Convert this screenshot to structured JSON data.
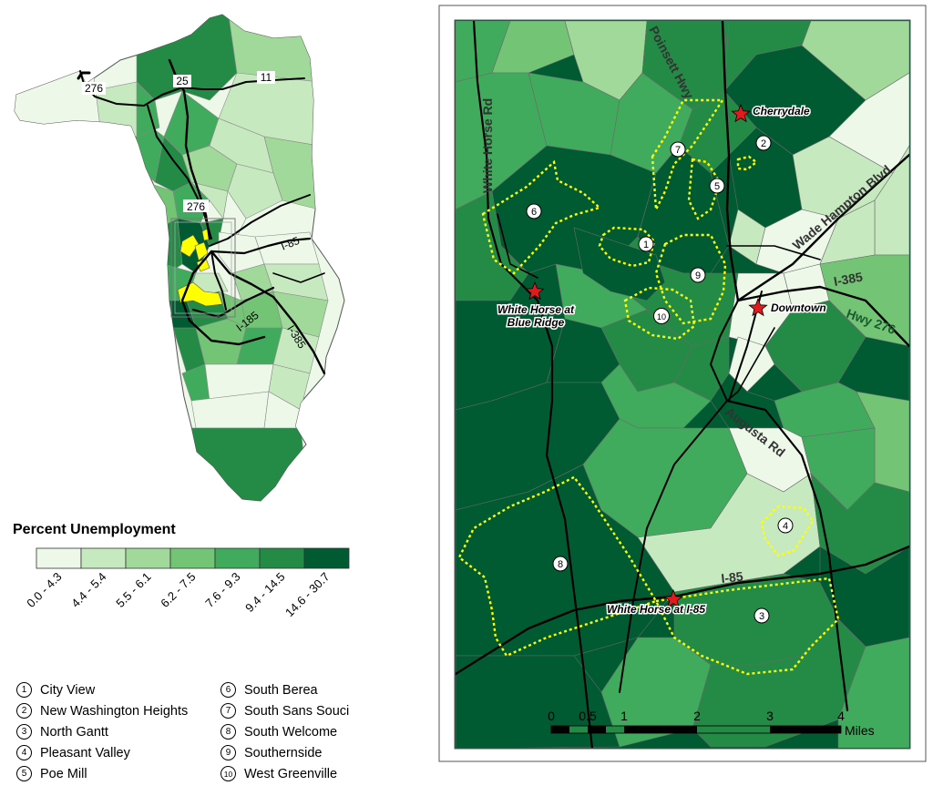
{
  "legend": {
    "title": "Percent Unemployment",
    "classes": [
      {
        "label": "0.0 - 4.3",
        "color": "#edf8e9"
      },
      {
        "label": "4.4 - 5.4",
        "color": "#c7e9c0"
      },
      {
        "label": "5.5 - 6.1",
        "color": "#a1d99b"
      },
      {
        "label": "6.2 - 7.5",
        "color": "#74c476"
      },
      {
        "label": "7.6 - 9.3",
        "color": "#41ab5d"
      },
      {
        "label": "9.4 - 14.5",
        "color": "#238b45"
      },
      {
        "label": "14.6 - 30.7",
        "color": "#005a32"
      }
    ]
  },
  "neighborhoods": [
    {
      "num": "1",
      "name": "City View"
    },
    {
      "num": "2",
      "name": "New Washington Heights"
    },
    {
      "num": "3",
      "name": "North Gantt"
    },
    {
      "num": "4",
      "name": "Pleasant Valley"
    },
    {
      "num": "5",
      "name": "Poe Mill"
    },
    {
      "num": "6",
      "name": "South Berea"
    },
    {
      "num": "7",
      "name": "South Sans Souci"
    },
    {
      "num": "8",
      "name": "South Welcome"
    },
    {
      "num": "9",
      "name": "Southernside"
    },
    {
      "num": "10",
      "name": "West Greenville"
    }
  ],
  "county_map": {
    "route_labels": [
      "276",
      "25",
      "11",
      "276",
      "I-85",
      "I-185",
      "I-385"
    ],
    "highlight_color": "#ffff00"
  },
  "detail_map": {
    "road_labels": [
      "Poinsett Hwy",
      "White Horse Rd",
      "Wade Hampton Blvd",
      "I-385",
      "Augusta Rd",
      "I-85",
      "Hwy 276"
    ],
    "places": [
      "Cherrydale",
      "Downtown",
      "White Horse at Blue Ridge",
      "White Horse at I-85"
    ],
    "boundary_color": "#ffff00",
    "marker_color": "#e31a1c",
    "scale_bar": {
      "ticks": [
        "0",
        "0.5",
        "1",
        "2",
        "3",
        "4"
      ],
      "unit": "Miles"
    }
  }
}
